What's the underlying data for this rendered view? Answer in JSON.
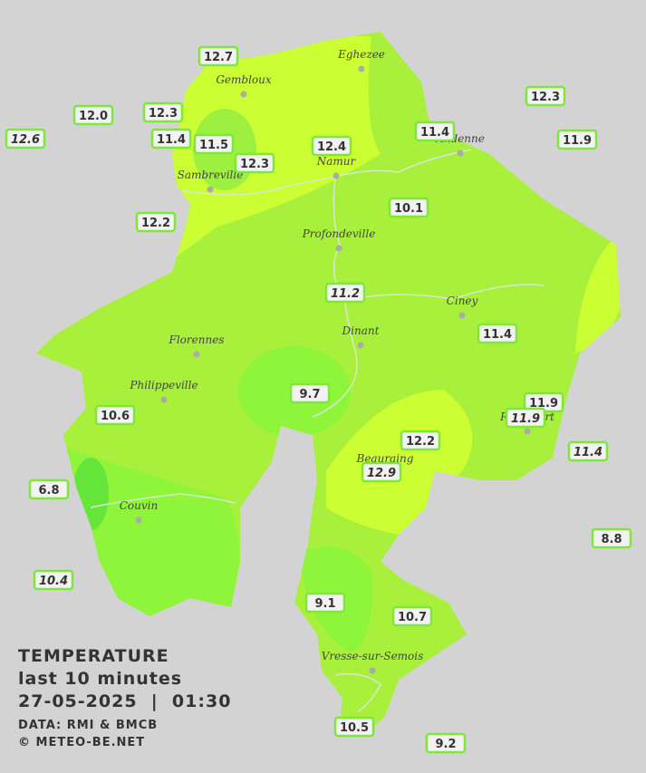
{
  "title": {
    "heading": "TEMPERATURE",
    "period": "last 10 minutes",
    "datetime": "27-05-2025  |  01:30",
    "source": "DATA: RMI & BMCB",
    "copyright": "© METEO-BE.NET"
  },
  "cities": [
    "Eghezee",
    "Gembloux",
    "Andenne",
    "Namur",
    "Sambreville",
    "Profondeville",
    "Ciney",
    "Dinant",
    "Florennes",
    "Philippeville",
    "Beauraing",
    "Rochefort",
    "Couvin",
    "Vresse-sur-Semois"
  ],
  "stations": [
    {
      "label": "12.7"
    },
    {
      "label": "12.3"
    },
    {
      "label": "12.0"
    },
    {
      "label": "12.6",
      "italic": true
    },
    {
      "label": "11.4"
    },
    {
      "label": "11.5"
    },
    {
      "label": "12.3"
    },
    {
      "label": "12.4"
    },
    {
      "label": "11.4"
    },
    {
      "label": "12.3"
    },
    {
      "label": "11.9"
    },
    {
      "label": "12.2"
    },
    {
      "label": "10.1"
    },
    {
      "label": "11.2",
      "italic": true
    },
    {
      "label": "11.4"
    },
    {
      "label": "10.6"
    },
    {
      "label": "9.7"
    },
    {
      "label": "11.9"
    },
    {
      "label": "11.9",
      "italic": true
    },
    {
      "label": "12.2"
    },
    {
      "label": "12.9",
      "italic": true
    },
    {
      "label": "11.4",
      "italic": true
    },
    {
      "label": "6.8"
    },
    {
      "label": "8.8"
    },
    {
      "label": "10.4",
      "italic": true
    },
    {
      "label": "9.1"
    },
    {
      "label": "10.7"
    },
    {
      "label": "10.5"
    },
    {
      "label": "9.2"
    }
  ]
}
